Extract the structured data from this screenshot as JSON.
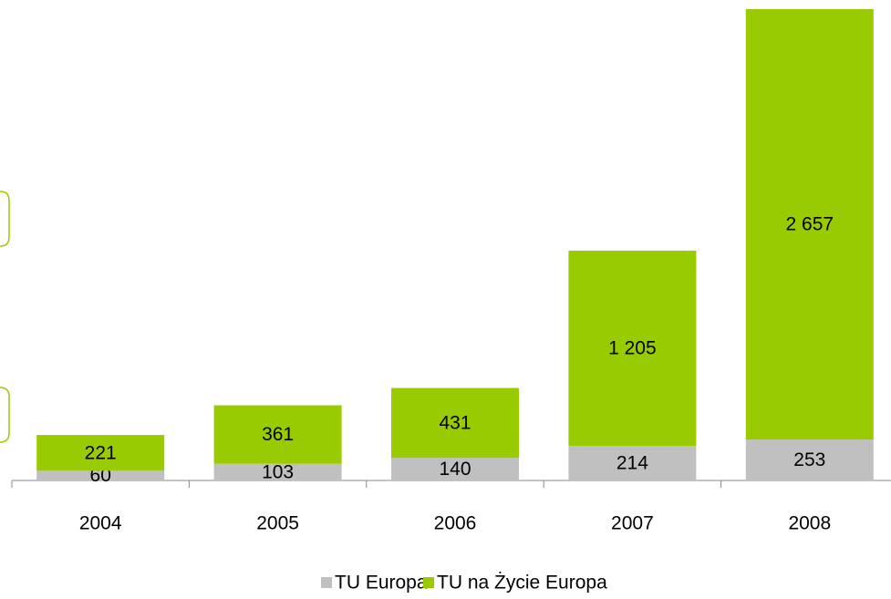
{
  "chart_data": {
    "type": "stacked_bar",
    "categories": [
      "2004",
      "2005",
      "2006",
      "2007",
      "2008"
    ],
    "series": [
      {
        "name": "TU Europa",
        "color": "#c0c0c0",
        "values": [
          60,
          103,
          140,
          214,
          253
        ],
        "value_labels": [
          "60",
          "103",
          "140",
          "214",
          "253"
        ]
      },
      {
        "name": "TU na Życie Europa",
        "color": "#99cc00",
        "values": [
          221,
          361,
          431,
          1205,
          2657
        ],
        "value_labels": [
          "221",
          "361",
          "431",
          "1 205",
          "2 657"
        ]
      }
    ],
    "legend": "bottom"
  }
}
